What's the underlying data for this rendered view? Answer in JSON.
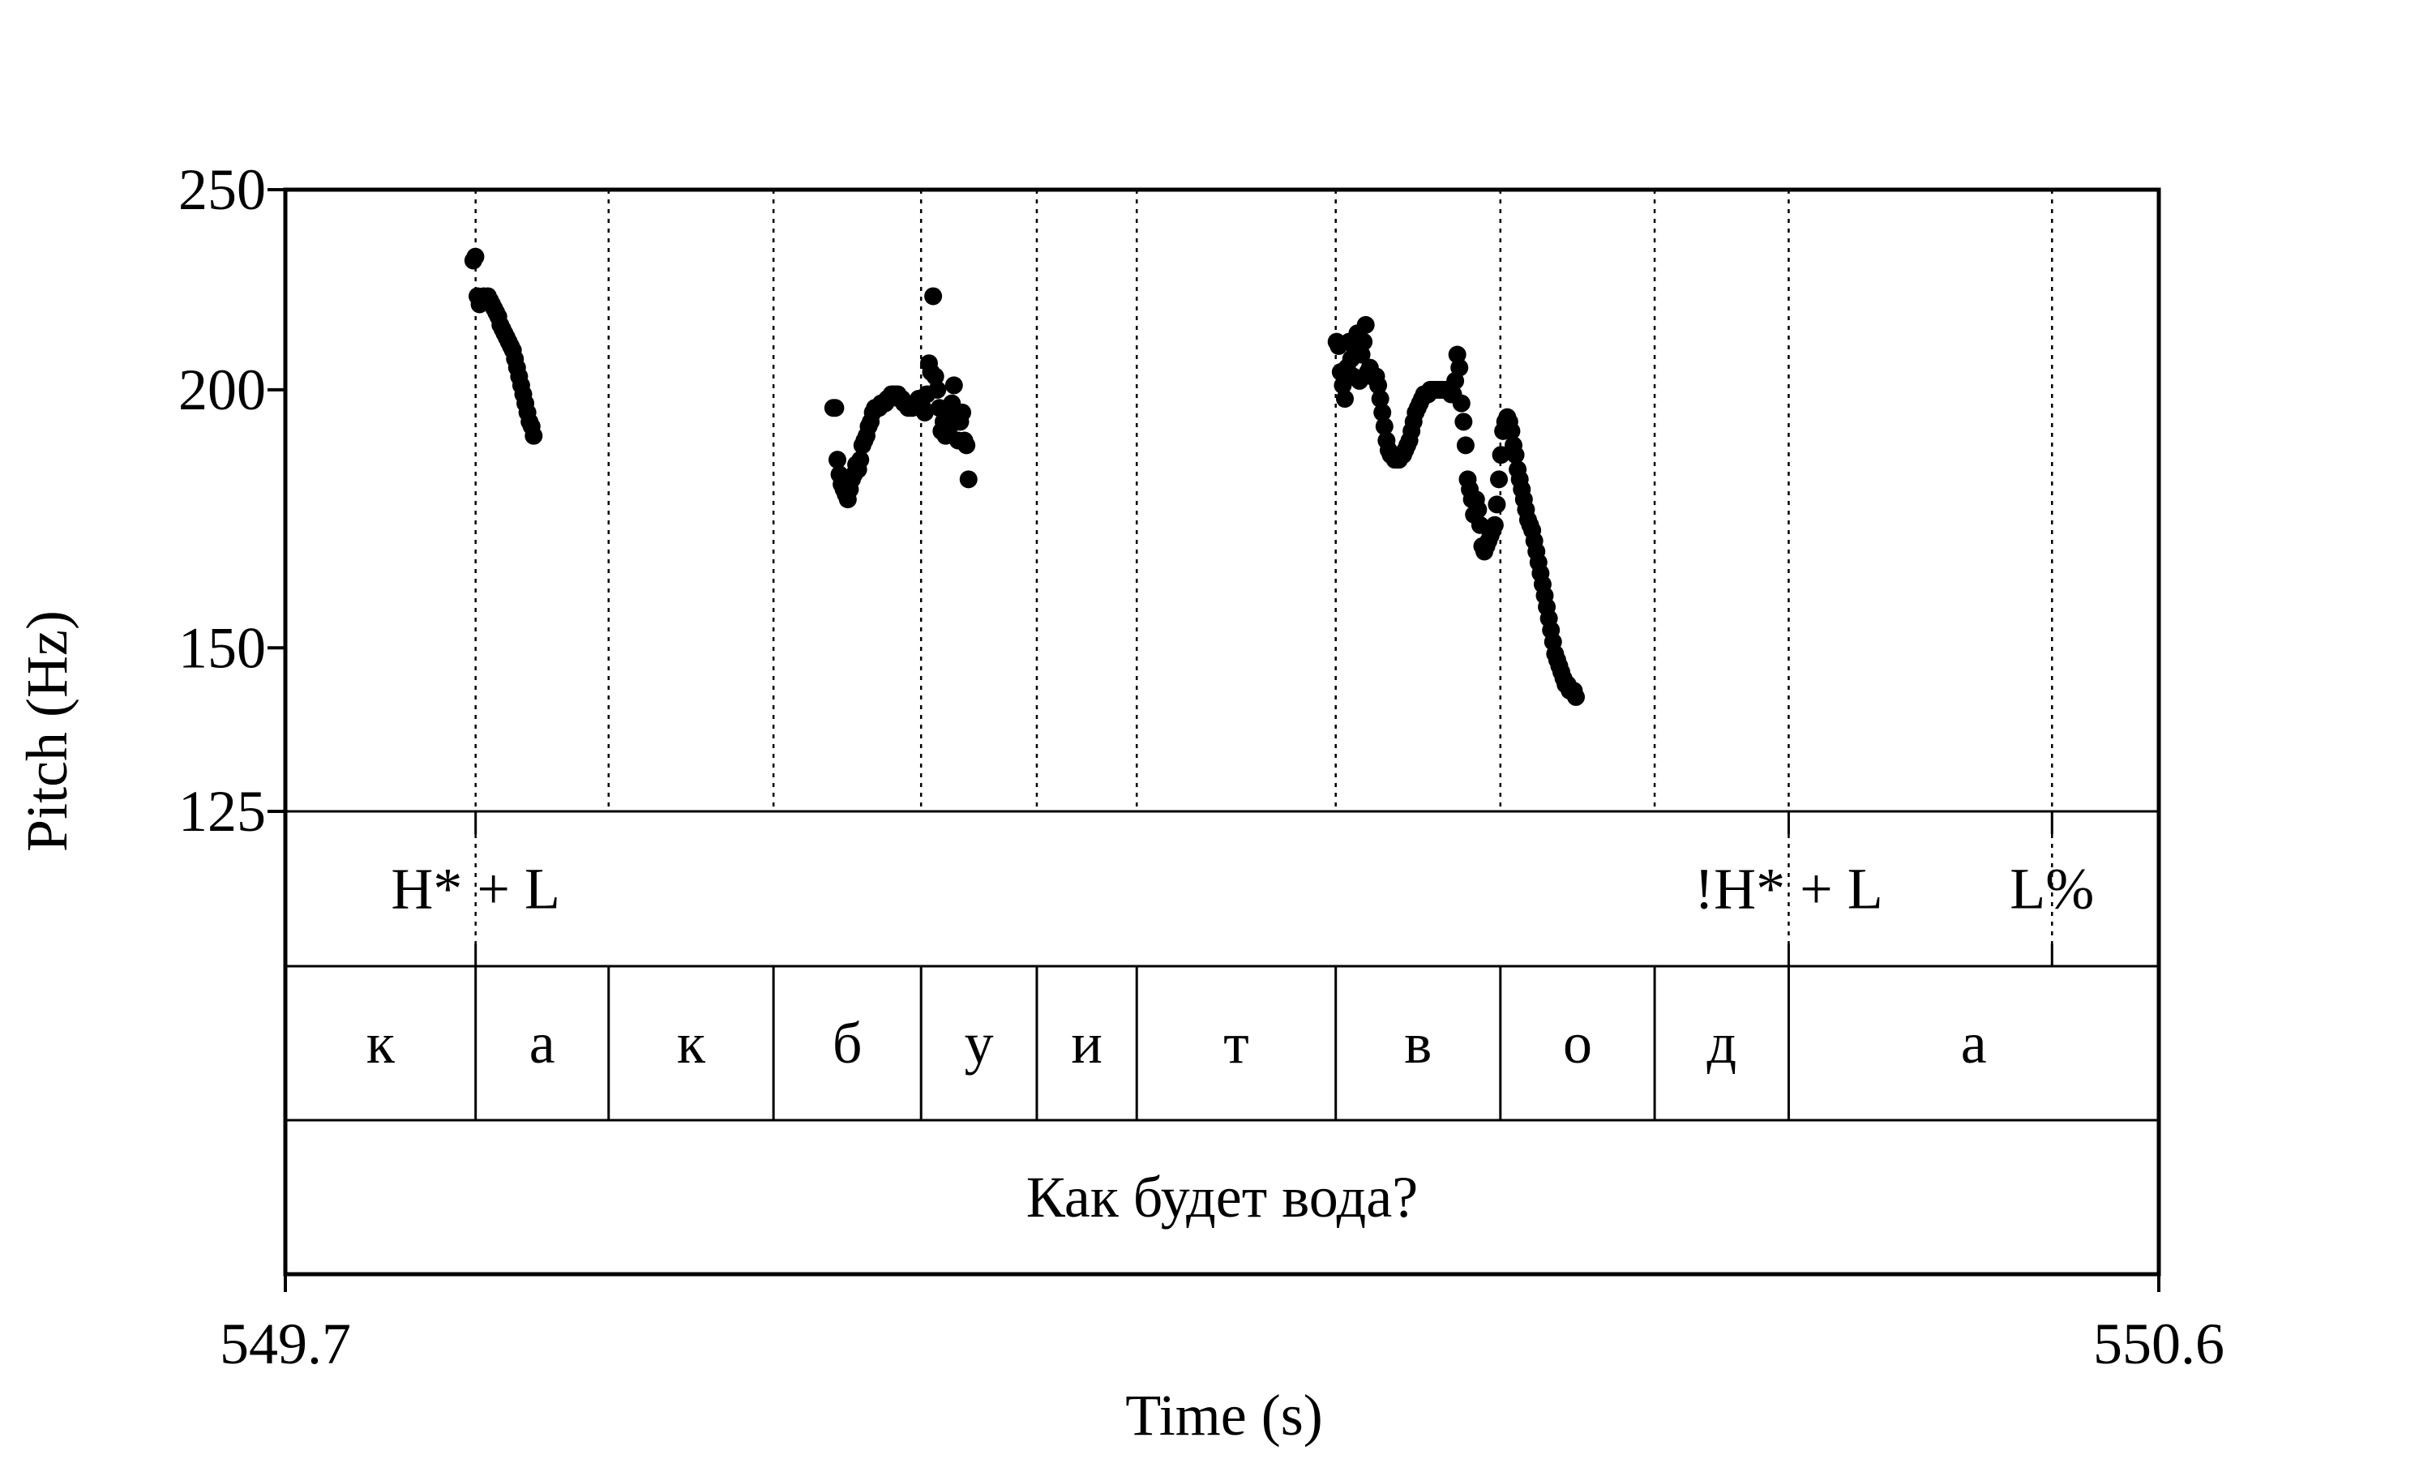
{
  "chart_data": {
    "type": "scatter",
    "xlabel": "Time (s)",
    "ylabel": "Pitch (Hz)",
    "xlim": [
      549.7,
      550.6
    ],
    "ylim": [
      125,
      250
    ],
    "x_tick_labels": [
      "549.7",
      "550.6"
    ],
    "y_ticks": [
      125,
      150,
      200,
      250
    ],
    "y_tick_labels": [
      "125",
      "150",
      "200",
      "250"
    ],
    "segment_boundaries": [
      549.7914,
      549.8553,
      549.9345,
      550.0054,
      550.061,
      550.109,
      550.2046,
      550.2837,
      550.3578,
      550.4222,
      550.5487
    ],
    "tones": [
      {
        "label": "H* + L",
        "time": 549.7914
      },
      {
        "label": "!H* + L",
        "time": 550.4222
      },
      {
        "label": "L%",
        "time": 550.5487
      }
    ],
    "segments": [
      {
        "label": "к",
        "start": 549.7,
        "end": 549.7914
      },
      {
        "label": "а",
        "start": 549.7914,
        "end": 549.8553
      },
      {
        "label": "к",
        "start": 549.8553,
        "end": 549.9345
      },
      {
        "label": "б",
        "start": 549.9345,
        "end": 550.0054
      },
      {
        "label": "у",
        "start": 550.0054,
        "end": 550.061
      },
      {
        "label": "и",
        "start": 550.061,
        "end": 550.109
      },
      {
        "label": "т",
        "start": 550.109,
        "end": 550.2046
      },
      {
        "label": "в",
        "start": 550.2046,
        "end": 550.2837
      },
      {
        "label": "о",
        "start": 550.2837,
        "end": 550.3578
      },
      {
        "label": "д",
        "start": 550.3578,
        "end": 550.4222
      },
      {
        "label": "а",
        "start": 550.4222,
        "end": 550.6
      }
    ],
    "sentence": "Как будет вода?",
    "series": [
      {
        "points": [
          [
            549.7903,
            231
          ],
          [
            549.7913,
            232
          ],
          [
            549.7923,
            222
          ],
          [
            549.7933,
            220
          ],
          [
            549.7943,
            221
          ],
          [
            549.7953,
            222
          ],
          [
            549.7963,
            221
          ],
          [
            549.7973,
            222
          ],
          [
            549.7983,
            221
          ],
          [
            549.7993,
            220
          ],
          [
            549.8003,
            219
          ],
          [
            549.8013,
            218
          ],
          [
            549.8023,
            217
          ],
          [
            549.8033,
            215
          ],
          [
            549.8043,
            214
          ],
          [
            549.8053,
            213
          ],
          [
            549.8063,
            212
          ],
          [
            549.8073,
            211
          ],
          [
            549.8083,
            210
          ],
          [
            549.8093,
            209
          ],
          [
            549.8103,
            207
          ],
          [
            549.8113,
            205
          ],
          [
            549.8123,
            203
          ],
          [
            549.8133,
            201
          ],
          [
            549.8143,
            199
          ],
          [
            549.8153,
            197
          ],
          [
            549.8163,
            195
          ],
          [
            549.8173,
            193
          ],
          [
            549.8183,
            192
          ],
          [
            549.8193,
            190
          ],
          [
            549.9632,
            196
          ],
          [
            549.9642,
            196
          ],
          [
            549.9652,
            185
          ],
          [
            549.9662,
            182
          ],
          [
            549.9672,
            180
          ],
          [
            549.9682,
            179
          ],
          [
            549.9692,
            178
          ],
          [
            549.9702,
            177
          ],
          [
            549.9712,
            179
          ],
          [
            549.9722,
            181
          ],
          [
            549.9732,
            182
          ],
          [
            549.9742,
            184
          ],
          [
            549.9752,
            183
          ],
          [
            549.9762,
            185
          ],
          [
            549.9772,
            188
          ],
          [
            549.9782,
            189
          ],
          [
            549.9792,
            190
          ],
          [
            549.9802,
            192
          ],
          [
            549.9812,
            193
          ],
          [
            549.9822,
            195
          ],
          [
            549.9832,
            196
          ],
          [
            549.9842,
            196
          ],
          [
            549.9852,
            196
          ],
          [
            549.9862,
            197
          ],
          [
            549.9872,
            197
          ],
          [
            549.9882,
            197
          ],
          [
            549.9892,
            198
          ],
          [
            549.9902,
            198
          ],
          [
            549.9912,
            199
          ],
          [
            549.9922,
            199
          ],
          [
            549.9932,
            199
          ],
          [
            549.9942,
            199
          ],
          [
            549.9952,
            198
          ],
          [
            549.9962,
            198
          ],
          [
            549.9972,
            197
          ],
          [
            549.9982,
            197
          ],
          [
            549.9992,
            196
          ],
          [
            550.0002,
            196
          ],
          [
            550.0012,
            196
          ],
          [
            550.0022,
            197
          ],
          [
            550.0032,
            197
          ],
          [
            550.0042,
            198
          ],
          [
            550.0052,
            197
          ],
          [
            550.0062,
            196
          ],
          [
            550.0072,
            195
          ],
          [
            550.0082,
            199
          ],
          [
            550.0092,
            206
          ],
          [
            550.0102,
            204
          ],
          [
            550.0112,
            222
          ],
          [
            550.0122,
            203
          ],
          [
            550.0132,
            200
          ],
          [
            550.0142,
            196
          ],
          [
            550.0152,
            191
          ],
          [
            550.0162,
            193
          ],
          [
            550.0172,
            190
          ],
          [
            550.0182,
            194
          ],
          [
            550.0192,
            192
          ],
          [
            550.0202,
            197
          ],
          [
            550.0212,
            201
          ],
          [
            550.0222,
            194
          ],
          [
            550.0232,
            189
          ],
          [
            550.0242,
            193
          ],
          [
            550.0252,
            195
          ],
          [
            550.0262,
            189
          ],
          [
            550.0272,
            188
          ],
          [
            550.0282,
            181
          ],
          [
            550.205,
            211
          ],
          [
            550.206,
            210
          ],
          [
            550.207,
            204
          ],
          [
            550.208,
            201
          ],
          [
            550.209,
            198
          ],
          [
            550.21,
            205
          ],
          [
            550.211,
            211
          ],
          [
            550.212,
            207
          ],
          [
            550.213,
            203
          ],
          [
            550.214,
            209
          ],
          [
            550.215,
            213
          ],
          [
            550.216,
            202
          ],
          [
            550.217,
            208
          ],
          [
            550.218,
            211
          ],
          [
            550.219,
            215
          ],
          [
            550.22,
            204
          ],
          [
            550.221,
            205
          ],
          [
            550.222,
            203
          ],
          [
            550.223,
            203
          ],
          [
            550.224,
            203
          ],
          [
            550.225,
            201
          ],
          [
            550.226,
            198
          ],
          [
            550.227,
            195
          ],
          [
            550.228,
            192
          ],
          [
            550.229,
            189
          ],
          [
            550.23,
            187
          ],
          [
            550.231,
            186
          ],
          [
            550.232,
            186
          ],
          [
            550.233,
            185
          ],
          [
            550.234,
            185
          ],
          [
            550.235,
            185
          ],
          [
            550.236,
            186
          ],
          [
            550.237,
            186
          ],
          [
            550.238,
            187
          ],
          [
            550.239,
            188
          ],
          [
            550.24,
            189
          ],
          [
            550.241,
            191
          ],
          [
            550.242,
            193
          ],
          [
            550.243,
            195
          ],
          [
            550.244,
            196
          ],
          [
            550.245,
            197
          ],
          [
            550.246,
            198
          ],
          [
            550.247,
            199
          ],
          [
            550.248,
            199
          ],
          [
            550.249,
            199
          ],
          [
            550.25,
            200
          ],
          [
            550.251,
            200
          ],
          [
            550.252,
            200
          ],
          [
            550.253,
            200
          ],
          [
            550.254,
            200
          ],
          [
            550.255,
            200
          ],
          [
            550.256,
            200
          ],
          [
            550.257,
            200
          ],
          [
            550.258,
            200
          ],
          [
            550.259,
            200
          ],
          [
            550.26,
            199
          ],
          [
            550.261,
            199
          ],
          [
            550.262,
            202
          ],
          [
            550.263,
            208
          ],
          [
            550.264,
            205
          ],
          [
            550.265,
            197
          ],
          [
            550.266,
            193
          ],
          [
            550.267,
            188
          ],
          [
            550.268,
            181
          ],
          [
            550.269,
            179
          ],
          [
            550.27,
            177
          ],
          [
            550.271,
            174
          ],
          [
            550.272,
            177
          ],
          [
            550.273,
            175
          ],
          [
            550.274,
            172
          ],
          [
            550.275,
            168
          ],
          [
            550.276,
            167
          ],
          [
            550.277,
            168
          ],
          [
            550.278,
            169
          ],
          [
            550.279,
            170
          ],
          [
            550.28,
            171
          ],
          [
            550.281,
            172
          ],
          [
            550.282,
            176
          ],
          [
            550.283,
            181
          ],
          [
            550.284,
            186
          ],
          [
            550.285,
            191
          ],
          [
            550.286,
            193
          ],
          [
            550.287,
            194
          ],
          [
            550.288,
            193
          ],
          [
            550.289,
            191
          ],
          [
            550.29,
            188
          ],
          [
            550.291,
            186
          ],
          [
            550.292,
            183
          ],
          [
            550.293,
            181
          ],
          [
            550.294,
            179
          ],
          [
            550.295,
            177
          ],
          [
            550.296,
            175
          ],
          [
            550.297,
            173
          ],
          [
            550.298,
            172
          ],
          [
            550.299,
            171
          ],
          [
            550.3,
            169
          ],
          [
            550.301,
            167
          ],
          [
            550.302,
            165
          ],
          [
            550.303,
            163
          ],
          [
            550.304,
            161
          ],
          [
            550.305,
            159
          ],
          [
            550.306,
            157
          ],
          [
            550.307,
            155
          ],
          [
            550.308,
            153
          ],
          [
            550.309,
            151
          ],
          [
            550.31,
            149
          ],
          [
            550.311,
            148
          ],
          [
            550.312,
            147
          ],
          [
            550.313,
            146
          ],
          [
            550.314,
            145
          ],
          [
            550.315,
            144
          ],
          [
            550.316,
            144
          ],
          [
            550.317,
            143
          ],
          [
            550.318,
            143
          ],
          [
            550.319,
            143
          ],
          [
            550.32,
            142
          ]
        ]
      }
    ]
  }
}
